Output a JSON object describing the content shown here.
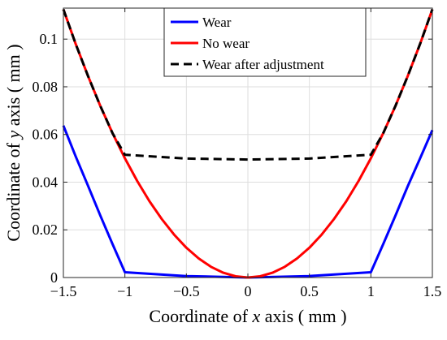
{
  "chart_data": {
    "type": "line",
    "title": "",
    "xlabel": {
      "pre": "Coordinate of ",
      "var": "x",
      "post": " axis ( mm )"
    },
    "ylabel": {
      "pre": "Coordinate of ",
      "var": "y",
      "post": " axis ( mm )"
    },
    "xlim": [
      -1.5,
      1.5
    ],
    "ylim": [
      0,
      0.113
    ],
    "xticks": [
      -1.5,
      -1,
      -0.5,
      0,
      0.5,
      1,
      1.5
    ],
    "xtick_labels": [
      "−1.5",
      "−1",
      "−0.5",
      "0",
      "0.5",
      "1",
      "1.5"
    ],
    "yticks": [
      0,
      0.02,
      0.04,
      0.06,
      0.08,
      0.1
    ],
    "ytick_labels": [
      "0",
      "0.02",
      "0.04",
      "0.06",
      "0.08",
      "0.1"
    ],
    "grid": true,
    "legend_position": "top-center",
    "series": [
      {
        "name": "Wear",
        "color": "#0000ff",
        "style": "solid",
        "x": [
          -1.5,
          -1.4,
          -1.3,
          -1.2,
          -1.1,
          -1.0,
          -0.5,
          0,
          0.5,
          1.0,
          1.1,
          1.2,
          1.3,
          1.4,
          1.5
        ],
        "y": [
          0.0637,
          0.0508,
          0.0385,
          0.026,
          0.014,
          0.0022,
          0.0006,
          0.0,
          0.0006,
          0.0022,
          0.014,
          0.026,
          0.0383,
          0.05,
          0.0618
        ]
      },
      {
        "name": "No wear",
        "color": "#ff0000",
        "style": "solid",
        "x": [
          -1.5,
          -1.4,
          -1.3,
          -1.2,
          -1.1,
          -1.0,
          -0.9,
          -0.8,
          -0.7,
          -0.6,
          -0.5,
          -0.4,
          -0.3,
          -0.2,
          -0.1,
          0,
          0.1,
          0.2,
          0.3,
          0.4,
          0.5,
          0.6,
          0.7,
          0.8,
          0.9,
          1.0,
          1.1,
          1.2,
          1.3,
          1.4,
          1.5
        ],
        "y": [
          0.1125,
          0.098,
          0.0845,
          0.072,
          0.0605,
          0.05,
          0.0405,
          0.032,
          0.0245,
          0.018,
          0.0125,
          0.008,
          0.0045,
          0.002,
          0.0005,
          0.0,
          0.0005,
          0.002,
          0.0045,
          0.008,
          0.0125,
          0.018,
          0.0245,
          0.032,
          0.0405,
          0.05,
          0.0605,
          0.072,
          0.0845,
          0.098,
          0.1125
        ]
      },
      {
        "name": "Wear after adjustment",
        "color": "#000000",
        "style": "dashed",
        "x": [
          -1.5,
          -1.4,
          -1.3,
          -1.2,
          -1.1,
          -1.0,
          -0.5,
          0,
          0.5,
          1.0,
          1.1,
          1.2,
          1.3,
          1.4,
          1.5
        ],
        "y": [
          0.1125,
          0.098,
          0.0845,
          0.072,
          0.0605,
          0.0515,
          0.0499,
          0.0495,
          0.0499,
          0.0515,
          0.0605,
          0.072,
          0.0845,
          0.098,
          0.1125
        ]
      }
    ]
  }
}
